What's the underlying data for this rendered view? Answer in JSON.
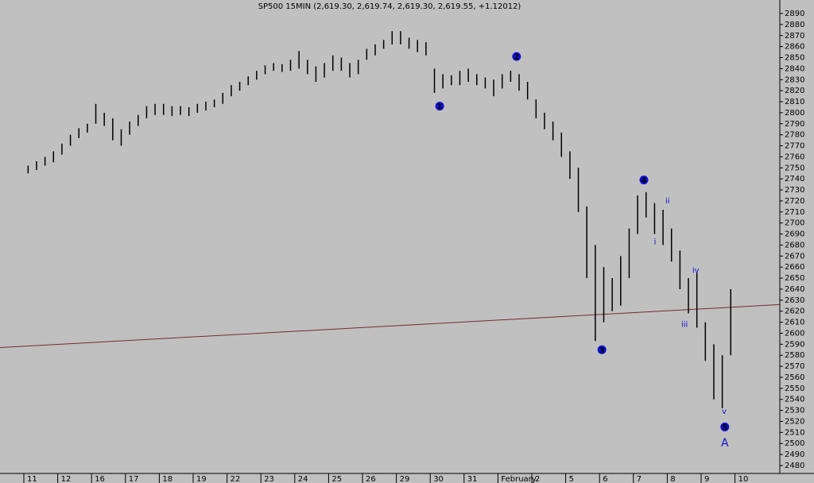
{
  "chart_data": {
    "type": "range-bar",
    "title": "SP500 15MIN (2,619.30, 2,619.74, 2,619.30, 2,619.55, +1.12012)",
    "categories": [
      "11",
      "12",
      "16",
      "17",
      "18",
      "19",
      "22",
      "23",
      "24",
      "25",
      "26",
      "29",
      "30",
      "31",
      "February",
      "2",
      "5",
      "6",
      "7",
      "8",
      "9",
      "10"
    ],
    "high": [
      [
        2752,
        2756,
        2760,
        2765
      ],
      [
        2772,
        2780,
        2786,
        2790
      ],
      [
        2808,
        2800,
        2795,
        2785
      ],
      [
        2792,
        2798,
        2806,
        2808
      ],
      [
        2808,
        2806,
        2806,
        2805
      ],
      [
        2808,
        2810,
        2812,
        2818
      ],
      [
        2825,
        2828,
        2833,
        2838
      ],
      [
        2843,
        2845,
        2844,
        2848
      ],
      [
        2856,
        2848,
        2842,
        2845
      ],
      [
        2852,
        2850,
        2845,
        2848
      ],
      [
        2858,
        2862,
        2866,
        2874
      ],
      [
        2874,
        2868,
        2866,
        2864
      ],
      [
        2840,
        2835,
        2834,
        2838
      ],
      [
        2840,
        2835,
        2832,
        2830
      ],
      [
        2835,
        2838,
        2835,
        2828
      ],
      [
        2812,
        2800,
        2792,
        2782
      ],
      [
        2765,
        2750,
        2715,
        2680
      ],
      [
        2660,
        2650,
        2670,
        2695
      ],
      [
        2725,
        2728,
        2718,
        2712
      ],
      [
        2695,
        2675,
        2650,
        2655
      ],
      [
        2610,
        2590,
        2580,
        2640
      ],
      []
    ],
    "low": [
      [
        2745,
        2748,
        2752,
        2755
      ],
      [
        2762,
        2770,
        2777,
        2782
      ],
      [
        2790,
        2788,
        2775,
        2770
      ],
      [
        2780,
        2788,
        2795,
        2798
      ],
      [
        2798,
        2797,
        2798,
        2797
      ],
      [
        2800,
        2802,
        2805,
        2808
      ],
      [
        2815,
        2820,
        2825,
        2830
      ],
      [
        2835,
        2838,
        2837,
        2838
      ],
      [
        2840,
        2835,
        2828,
        2832
      ],
      [
        2838,
        2838,
        2832,
        2835
      ],
      [
        2848,
        2852,
        2858,
        2862
      ],
      [
        2862,
        2858,
        2855,
        2852
      ],
      [
        2818,
        2822,
        2825,
        2825
      ],
      [
        2828,
        2825,
        2822,
        2815
      ],
      [
        2822,
        2828,
        2820,
        2812
      ],
      [
        2795,
        2785,
        2775,
        2760
      ],
      [
        2740,
        2710,
        2650,
        2593
      ],
      [
        2610,
        2620,
        2625,
        2650
      ],
      [
        2690,
        2705,
        2690,
        2680
      ],
      [
        2665,
        2640,
        2618,
        2605
      ],
      [
        2575,
        2540,
        2532,
        2580
      ],
      []
    ],
    "color": "#000000",
    "ylim": [
      2480,
      2890
    ],
    "yticks": [
      2480,
      2490,
      2500,
      2510,
      2520,
      2530,
      2540,
      2550,
      2560,
      2570,
      2580,
      2590,
      2600,
      2610,
      2620,
      2630,
      2640,
      2650,
      2660,
      2670,
      2680,
      2690,
      2700,
      2710,
      2720,
      2730,
      2740,
      2750,
      2760,
      2770,
      2780,
      2790,
      2800,
      2810,
      2820,
      2830,
      2840,
      2850,
      2860,
      2870,
      2880,
      2890
    ],
    "trendline": {
      "values": [
        2587,
        2626
      ],
      "color": "#7a2a2a"
    },
    "annotations": [
      {
        "text": "1",
        "x": 12.28,
        "y": 2806,
        "circled": true
      },
      {
        "text": "2",
        "x": 14.55,
        "y": 2851,
        "circled": true
      },
      {
        "text": "3",
        "x": 17.07,
        "y": 2585,
        "circled": true
      },
      {
        "text": "4",
        "x": 18.31,
        "y": 2739,
        "circled": true
      },
      {
        "text": "5",
        "x": 20.7,
        "y": 2515,
        "circled": true
      },
      {
        "text": "A",
        "x": 20.7,
        "y": 2500,
        "circled": false
      },
      {
        "text": "i",
        "x": 18.64,
        "y": 2683,
        "circled": false
      },
      {
        "text": "ii",
        "x": 19.01,
        "y": 2720,
        "circled": false
      },
      {
        "text": "iii",
        "x": 19.51,
        "y": 2608,
        "circled": false
      },
      {
        "text": "iv",
        "x": 19.84,
        "y": 2657,
        "circled": false
      },
      {
        "text": "v",
        "x": 20.68,
        "y": 2529,
        "circled": false
      }
    ]
  }
}
